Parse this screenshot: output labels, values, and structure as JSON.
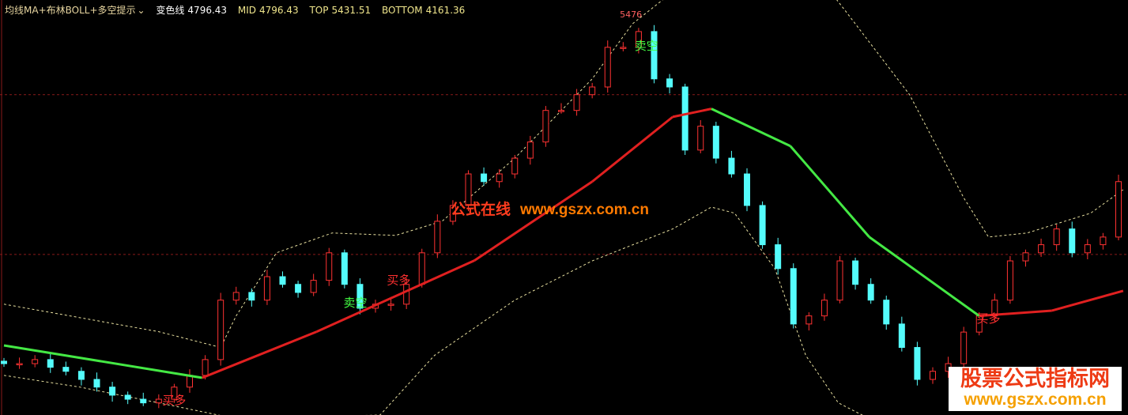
{
  "header": {
    "indicator_name": "均线MA+布林BOLL+多空提示",
    "dropdown_icon": "chevron-down-icon",
    "items": [
      {
        "label": "变色线",
        "value": "4796.43"
      },
      {
        "label": "MID",
        "value": "4796.43"
      },
      {
        "label": "TOP",
        "value": "5431.51"
      },
      {
        "label": "BOTTOM",
        "value": "4161.36"
      }
    ]
  },
  "watermark": {
    "cn": "公式在线",
    "url": "www.gszx.com.cn"
  },
  "logo": {
    "cn": "股票公式指标网",
    "url": "www.gszx.com.cn"
  },
  "colors": {
    "up": "#ff3232",
    "down": "#54fcfc",
    "ma_up": "#e02020",
    "ma_down": "#44e844",
    "band": "#e8e0a0",
    "grid": "#8a1a1a",
    "buy": "#ff3030",
    "sell": "#44ff44"
  },
  "chart_data": {
    "type": "candlestick",
    "ylim": [
      4493,
      5519
    ],
    "grid": "horizontal dashed",
    "closes": [
      4620,
      4620,
      4630,
      4611,
      4601,
      4581,
      4562,
      4542,
      4532,
      4523,
      4532,
      4562,
      4591,
      4630,
      4777,
      4796,
      4777,
      4835,
      4816,
      4796,
      4826,
      4894,
      4816,
      4757,
      4767,
      4767,
      4816,
      4894,
      4972,
      5011,
      5089,
      5070,
      5089,
      5128,
      5168,
      5246,
      5246,
      5285,
      5304,
      5402,
      5402,
      5441,
      5324,
      5304,
      5148,
      5207,
      5128,
      5089,
      5011,
      4914,
      4855,
      4718,
      4738,
      4777,
      4874,
      4816,
      4777,
      4718,
      4660,
      4581,
      4601,
      4620,
      4698,
      4738,
      4777,
      4874,
      4894,
      4914,
      4953,
      4894,
      4914,
      4933,
      5070
    ],
    "gridlines": [
      5285,
      4890
    ],
    "ma_line": [
      [
        0,
        4665
      ],
      [
        12.8,
        4585
      ],
      [
        20.2,
        4699
      ],
      [
        30.4,
        4875
      ],
      [
        38,
        5070
      ],
      [
        43.2,
        5230
      ],
      [
        45.7,
        5250
      ],
      [
        50.8,
        5158
      ],
      [
        55.9,
        4933
      ],
      [
        63,
        4738
      ],
      [
        67.7,
        4751
      ],
      [
        72.3,
        4800
      ]
    ],
    "ma_colors": [
      "down",
      "up",
      "up",
      "up",
      "up",
      "up",
      "down",
      "down",
      "down",
      "up",
      "up"
    ],
    "upper_band": [
      [
        [
          0,
          4767
        ],
        [
          2.8,
          4748
        ],
        [
          10,
          4699
        ],
        [
          14,
          4660
        ],
        [
          15,
          4738
        ],
        [
          17.6,
          4894
        ],
        [
          21.2,
          4943
        ],
        [
          25.3,
          4937
        ],
        [
          28.3,
          4972
        ],
        [
          33,
          5128
        ],
        [
          38,
          5324
        ],
        [
          40.6,
          5460
        ],
        [
          43.2,
          5539
        ]
      ],
      [
        [
          53.4,
          5539
        ],
        [
          54.4,
          5490
        ],
        [
          58.5,
          5285
        ],
        [
          62,
          5030
        ],
        [
          63.6,
          4933
        ],
        [
          66.1,
          4943
        ],
        [
          70.2,
          4992
        ],
        [
          72.3,
          5050
        ]
      ]
    ],
    "lower_band": [
      [
        [
          0,
          4591
        ],
        [
          4.9,
          4562
        ],
        [
          10,
          4523
        ],
        [
          15,
          4484
        ],
        [
          24.3,
          4493
        ],
        [
          27.8,
          4640
        ],
        [
          33,
          4777
        ],
        [
          38,
          4874
        ],
        [
          43.2,
          4953
        ],
        [
          45.7,
          5007
        ],
        [
          47.2,
          4992
        ],
        [
          49.8,
          4855
        ],
        [
          51.8,
          4640
        ],
        [
          53.9,
          4523
        ],
        [
          55.9,
          4484
        ]
      ]
    ],
    "peak_label": {
      "index": 40.5,
      "price": 5476,
      "text": "5476"
    },
    "signals": [
      {
        "index": 11,
        "price": 4519,
        "text": "买多",
        "kind": "buy"
      },
      {
        "index": 22.7,
        "price": 4761,
        "text": "卖空",
        "kind": "sell"
      },
      {
        "index": 25.5,
        "price": 4816,
        "text": "买多",
        "kind": "buy"
      },
      {
        "index": 41.5,
        "price": 5396,
        "text": "卖空",
        "kind": "sell"
      },
      {
        "index": 63.6,
        "price": 4722,
        "text": "买多",
        "kind": "buy"
      }
    ]
  }
}
